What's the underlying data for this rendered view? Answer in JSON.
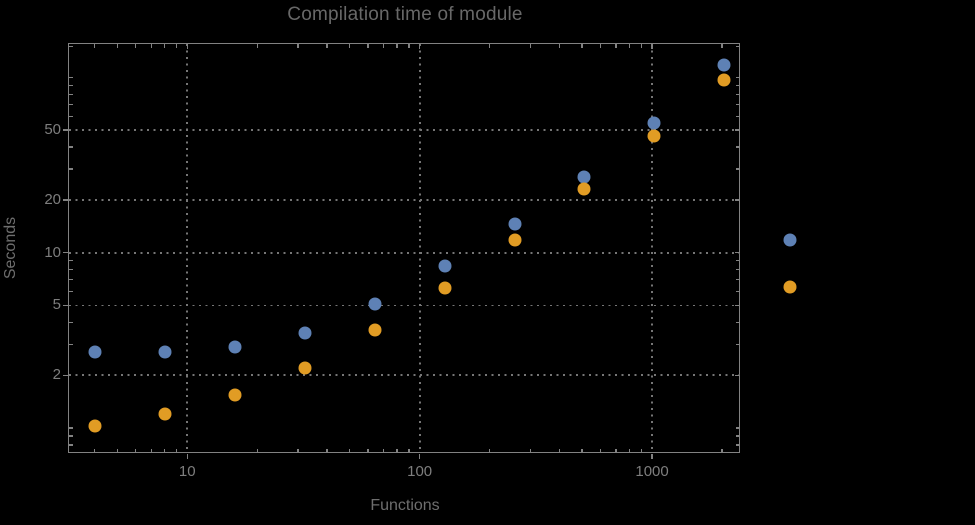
{
  "page": {
    "background": "#000000"
  },
  "colors": {
    "background": "#000000",
    "frame": "#828282",
    "grid": "#767676",
    "tick_label": "#7E7E7E",
    "title": "#686868",
    "axis_label": "#6E6E6E",
    "series1": "#5E81B5",
    "series2": "#E19C24"
  },
  "chart_data": {
    "type": "scatter",
    "title": "Compilation time of module",
    "xlabel": "Functions",
    "ylabel": "Seconds",
    "x_scale": "log",
    "y_scale": "log",
    "grid": "dotted lines at major ticks",
    "x": [
      4,
      8,
      16,
      32,
      64,
      128,
      256,
      512,
      1024,
      2048
    ],
    "series": [
      {
        "name": "series-1-blue",
        "color": "#5E81B5",
        "values": [
          2.7,
          2.7,
          2.9,
          3.5,
          5.1,
          8.4,
          14.5,
          27,
          55,
          118
        ]
      },
      {
        "name": "series-2-orange",
        "color": "#E19C24",
        "values": [
          1.03,
          1.2,
          1.55,
          2.2,
          3.6,
          6.3,
          11.8,
          23,
          46,
          97
        ]
      }
    ],
    "xlim": [
      3.1,
      2390
    ],
    "ylim": [
      0.72,
      155
    ],
    "x_ticks_major": [
      10,
      100,
      1000
    ],
    "x_tick_labels": [
      "10",
      "100",
      "1000"
    ],
    "x_ticks_minor": [
      4,
      5,
      6,
      7,
      8,
      9,
      20,
      30,
      40,
      50,
      60,
      70,
      80,
      90,
      200,
      300,
      400,
      500,
      600,
      700,
      800,
      900,
      2000
    ],
    "y_ticks_major": [
      2,
      5,
      10,
      20,
      50
    ],
    "y_tick_labels": [
      "2",
      "5",
      "10",
      "20",
      "50"
    ],
    "y_ticks_minor": [
      0.8,
      0.9,
      1,
      3,
      4,
      6,
      7,
      8,
      9,
      30,
      40,
      60,
      70,
      80,
      90,
      100,
      150
    ],
    "legend_position": "right-center-outside",
    "legend_markers": [
      {
        "series": "series-1-blue",
        "color": "#5E81B5"
      },
      {
        "series": "series-2-orange",
        "color": "#E19C24"
      }
    ]
  }
}
